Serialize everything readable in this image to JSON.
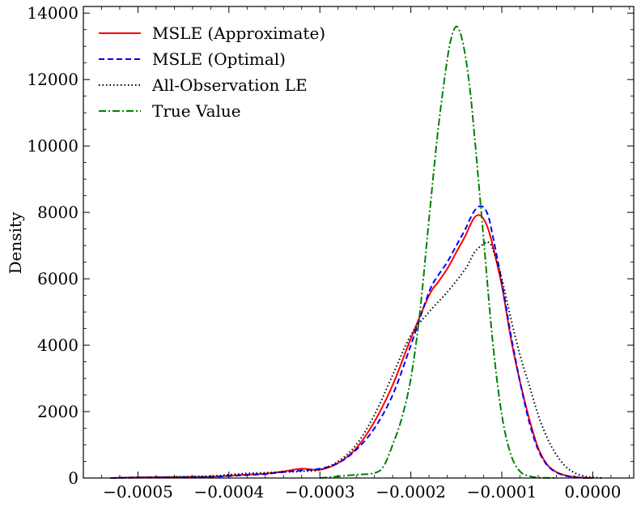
{
  "chart_data": {
    "type": "line",
    "title": "",
    "xlabel": "",
    "ylabel": "Density",
    "xlim": [
      -0.00056,
      4.5e-05
    ],
    "ylim": [
      0,
      14200
    ],
    "xticks": [
      -0.0005,
      -0.0004,
      -0.0003,
      -0.0002,
      -0.0001,
      0.0
    ],
    "xtick_labels": [
      "−0.0005",
      "−0.0004",
      "−0.0003",
      "−0.0002",
      "−0.0001",
      "0.0000"
    ],
    "yticks": [
      0,
      2000,
      4000,
      6000,
      8000,
      10000,
      12000,
      14000
    ],
    "ytick_labels": [
      "0",
      "2000",
      "4000",
      "6000",
      "8000",
      "10000",
      "12000",
      "14000"
    ],
    "legend_position": "top-left",
    "series": [
      {
        "name": "MSLE (Approximate)",
        "color": "#ff0000",
        "style": "solid",
        "x": [
          -0.00053,
          -0.0005,
          -0.00046,
          -0.00042,
          -0.0004,
          -0.00038,
          -0.00036,
          -0.00034,
          -0.00032,
          -0.0003,
          -0.00028,
          -0.00026,
          -0.00024,
          -0.00022,
          -0.0002,
          -0.00018,
          -0.00017,
          -0.00016,
          -0.00015,
          -0.00014,
          -0.000135,
          -0.00013,
          -0.000125,
          -0.00012,
          -0.000115,
          -0.00011,
          -0.0001,
          -9e-05,
          -8e-05,
          -7e-05,
          -6e-05,
          -5e-05,
          -4e-05,
          -3e-05,
          -2e-05,
          -1e-05,
          0.0
        ],
        "y": [
          0,
          20,
          30,
          40,
          70,
          100,
          130,
          200,
          280,
          250,
          450,
          900,
          1700,
          2800,
          4200,
          5500,
          5900,
          6300,
          6800,
          7300,
          7600,
          7850,
          7920,
          7800,
          7500,
          7000,
          5800,
          4200,
          2900,
          1800,
          900,
          400,
          180,
          80,
          30,
          10,
          0
        ]
      },
      {
        "name": "MSLE (Optimal)",
        "color": "#0000ff",
        "style": "dashed",
        "x": [
          -0.00053,
          -0.0005,
          -0.00046,
          -0.00042,
          -0.0004,
          -0.00038,
          -0.00036,
          -0.00034,
          -0.00032,
          -0.0003,
          -0.00028,
          -0.00026,
          -0.00024,
          -0.00022,
          -0.0002,
          -0.00018,
          -0.00017,
          -0.00016,
          -0.00015,
          -0.00014,
          -0.000135,
          -0.00013,
          -0.000125,
          -0.00012,
          -0.000115,
          -0.00011,
          -0.0001,
          -9e-05,
          -8e-05,
          -7e-05,
          -6e-05,
          -5e-05,
          -4e-05,
          -3e-05,
          -2e-05,
          -1e-05,
          0.0
        ],
        "y": [
          0,
          15,
          25,
          35,
          60,
          90,
          120,
          180,
          230,
          280,
          450,
          850,
          1500,
          2500,
          4000,
          5600,
          6100,
          6500,
          7000,
          7500,
          7800,
          8050,
          8180,
          8150,
          7900,
          7300,
          5900,
          4300,
          2900,
          1700,
          850,
          380,
          170,
          70,
          25,
          8,
          0
        ]
      },
      {
        "name": "All-Observation LE",
        "color": "#000000",
        "style": "dotted",
        "x": [
          -0.00053,
          -0.0005,
          -0.00046,
          -0.00042,
          -0.0004,
          -0.00038,
          -0.00036,
          -0.00034,
          -0.00032,
          -0.0003,
          -0.00028,
          -0.00026,
          -0.00024,
          -0.00022,
          -0.0002,
          -0.00018,
          -0.00016,
          -0.00014,
          -0.00013,
          -0.00012,
          -0.000115,
          -0.00011,
          -0.0001,
          -9e-05,
          -8e-05,
          -7e-05,
          -6e-05,
          -5e-05,
          -4e-05,
          -3e-05,
          -2e-05,
          -1e-05,
          0.0,
          1e-05
        ],
        "y": [
          0,
          10,
          30,
          60,
          100,
          140,
          160,
          180,
          200,
          250,
          500,
          1000,
          1900,
          3100,
          4300,
          5000,
          5600,
          6300,
          6800,
          7050,
          7100,
          6900,
          6000,
          4800,
          3700,
          2800,
          1900,
          1200,
          700,
          350,
          160,
          60,
          20,
          0
        ]
      },
      {
        "name": "True Value",
        "color": "#008000",
        "style": "dashdot",
        "x": [
          -0.0003,
          -0.00028,
          -0.00026,
          -0.00024,
          -0.00023,
          -0.00022,
          -0.00021,
          -0.0002,
          -0.00019,
          -0.00018,
          -0.00017,
          -0.00016,
          -0.000155,
          -0.00015,
          -0.000145,
          -0.00014,
          -0.000135,
          -0.00013,
          -0.00012,
          -0.00011,
          -0.0001,
          -9e-05,
          -8e-05,
          -7e-05,
          -6e-05,
          -5e-05,
          -4e-05
        ],
        "y": [
          0,
          50,
          100,
          150,
          350,
          1000,
          1800,
          3000,
          5000,
          7800,
          10500,
          12600,
          13300,
          13600,
          13350,
          12700,
          11700,
          10300,
          7200,
          4100,
          1900,
          700,
          200,
          60,
          15,
          5,
          0
        ]
      }
    ]
  }
}
